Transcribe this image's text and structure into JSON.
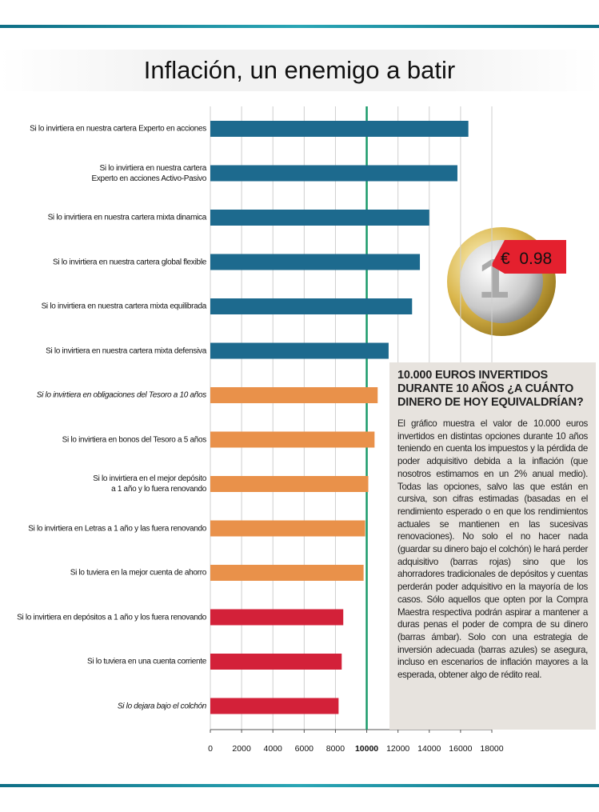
{
  "chart_data": {
    "type": "bar",
    "orientation": "horizontal",
    "title": "Inflación, un enemigo a batir",
    "categories": [
      "Si lo invirtiera en nuestra cartera Experto en acciones",
      "Si lo invirtiera en nuestra cartera\nExperto en acciones Activo-Pasivo",
      "Si lo invirtiera en nuestra cartera mixta dinamica",
      "Si lo invirtiera en nuestra cartera global flexible",
      "Si lo invirtiera en nuestra cartera mixta equilibrada",
      "Si lo invirtiera en nuestra cartera mixta defensiva",
      "Si lo invirtiera en obligaciones del Tesoro a 10 años",
      "Si lo invirtiera en bonos del Tesoro a 5 años",
      "Si lo invirtiera en el mejor depósito\na 1 año y lo fuera renovando",
      "Si lo invirtiera en Letras a 1 año y las fuera renovando",
      "Si lo tuviera en la mejor cuenta de ahorro",
      "Si lo invirtiera en depósitos a 1 año y los fuera renovando",
      "Si lo tuviera en una cuenta corriente",
      "Si lo dejara bajo el colchón"
    ],
    "values": [
      16500,
      15800,
      14000,
      13400,
      12900,
      11400,
      10700,
      10500,
      10100,
      9900,
      9800,
      8500,
      8400,
      8200
    ],
    "colors": [
      "#1d6a8e",
      "#1d6a8e",
      "#1d6a8e",
      "#1d6a8e",
      "#1d6a8e",
      "#1d6a8e",
      "#e9914a",
      "#e9914a",
      "#e9914a",
      "#e9914a",
      "#e9914a",
      "#d32139",
      "#d32139",
      "#d32139"
    ],
    "xlim": [
      0,
      18000
    ],
    "xticks": [
      0,
      2000,
      4000,
      6000,
      8000,
      10000,
      12000,
      14000,
      16000,
      18000
    ],
    "reference_line": 10000,
    "reference_color": "#1a9a6a",
    "grid": true
  },
  "coin_tag": "€  0.98",
  "sidebar": {
    "heading": "10.000 EUROS INVERTIDOS DURANTE 10 AÑOS ¿A CUÁNTO DINERO DE HOY EQUIVALDRÍAN?",
    "body": "El gráfico muestra el valor de 10.000 euros invertidos en distintas opciones durante 10 años teniendo en cuenta los impuestos y la pérdida de poder adquisitivo debida a la inflación (que nosotros estimamos en un 2% anual medio). Todas las opciones, salvo las que están en cursiva, son cifras estimadas (basadas en el rendimiento esperado o en que los rendimientos actuales se mantienen en las sucesivas renovaciones). No solo el no hacer nada (guardar su dinero bajo el colchón) le hará perder adquisitivo (barras rojas) sino que los ahorradores tradicionales de depósitos y cuentas perderán poder adquisitivo en la mayoría de los casos. Sólo aquellos que opten por la Compra Maestra respectiva podrán aspirar a mantener a duras penas el poder de compra de su dinero (barras ámbar). Solo con una estrategia de inversión adecuada (barras azules) se asegura, incluso en escenarios de inflación mayores a la esperada, obtener algo de rédito real."
  }
}
